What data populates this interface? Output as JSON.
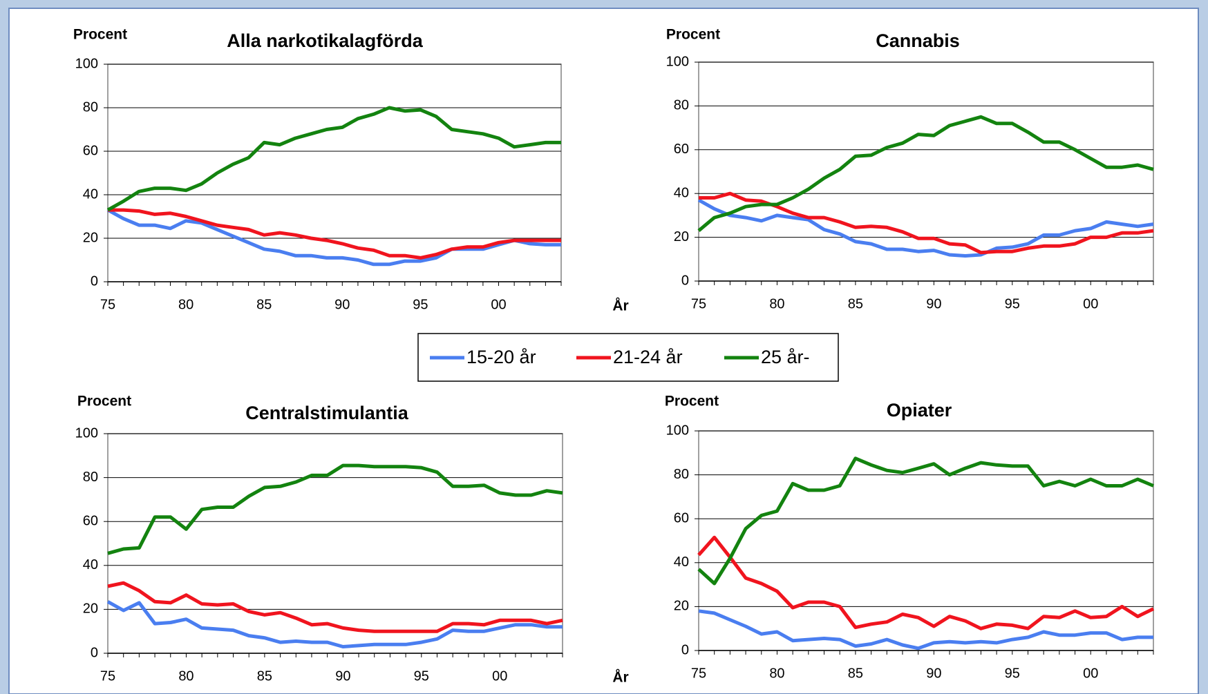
{
  "chart_data": [
    {
      "type": "line",
      "title": "Alla narkotikalagförda",
      "ylabel": "Procent",
      "xlabel": "År",
      "categories": [
        "75",
        null,
        null,
        null,
        null,
        "80",
        null,
        null,
        null,
        null,
        "85",
        null,
        null,
        null,
        null,
        "90",
        null,
        null,
        null,
        null,
        "95",
        null,
        null,
        null,
        null,
        "00",
        null,
        null,
        null,
        null
      ],
      "ylim": [
        0,
        100
      ],
      "yticks": [
        0,
        20,
        40,
        60,
        80,
        100
      ],
      "grid": true,
      "series": [
        {
          "name": "15-20 år",
          "color": "#4a7ef0",
          "values": [
            33,
            29,
            26,
            26,
            24.5,
            28,
            27,
            24,
            21,
            18,
            15,
            14,
            12,
            12,
            11,
            11,
            10,
            8,
            8,
            9.5,
            9.5,
            11,
            15,
            15,
            15,
            17,
            19,
            17.5,
            17,
            17
          ]
        },
        {
          "name": "21-24 år",
          "color": "#f0141e",
          "values": [
            33,
            33,
            32.5,
            31,
            31.5,
            30,
            28,
            26,
            25,
            24,
            21.5,
            22.5,
            21.5,
            20,
            19,
            17.5,
            15.5,
            14.5,
            12,
            12,
            11,
            12.5,
            15,
            16,
            16,
            18,
            19,
            19,
            19,
            19
          ]
        },
        {
          "name": "25 år-",
          "color": "#13830f",
          "values": [
            33,
            37,
            41.5,
            43,
            43,
            42,
            45,
            50,
            54,
            57,
            64,
            63,
            66,
            68,
            70,
            71,
            75,
            77,
            80,
            78.5,
            79,
            76,
            70,
            69,
            68,
            66,
            62,
            63,
            64,
            64
          ]
        }
      ]
    },
    {
      "type": "line",
      "title": "Cannabis",
      "ylabel": "Procent",
      "categories": [
        "75",
        null,
        null,
        null,
        null,
        "80",
        null,
        null,
        null,
        null,
        "85",
        null,
        null,
        null,
        null,
        "90",
        null,
        null,
        null,
        null,
        "95",
        null,
        null,
        null,
        null,
        "00",
        null,
        null,
        null,
        null
      ],
      "ylim": [
        0,
        100
      ],
      "yticks": [
        0,
        20,
        40,
        60,
        80,
        100
      ],
      "grid": true,
      "series": [
        {
          "values": [
            37,
            33,
            30,
            29,
            27.5,
            30,
            29,
            28,
            23.5,
            21.5,
            18,
            17,
            14.5,
            14.5,
            13.5,
            14,
            12,
            11.5,
            12,
            15,
            15.5,
            17,
            21,
            21,
            23,
            24,
            27,
            26,
            25,
            26
          ]
        },
        {
          "values": [
            38,
            38,
            40,
            37,
            36.5,
            34,
            31,
            29,
            29,
            27,
            24.5,
            25,
            24.5,
            22.5,
            19.5,
            19.5,
            17,
            16.5,
            13,
            13.5,
            13.5,
            15,
            16,
            16,
            17,
            20,
            20,
            22,
            22,
            23
          ]
        },
        {
          "values": [
            23,
            29,
            31,
            34,
            35,
            35,
            38,
            42,
            47,
            51,
            57,
            57.5,
            61,
            63,
            67,
            66.5,
            71,
            73,
            75,
            72,
            72,
            68,
            63.5,
            63.5,
            60,
            56,
            52,
            52,
            53,
            51
          ]
        }
      ]
    },
    {
      "type": "line",
      "title": "Centralstimulantia",
      "ylabel": "Procent",
      "xlabel": "År",
      "categories": [
        "75",
        null,
        null,
        null,
        null,
        "80",
        null,
        null,
        null,
        null,
        "85",
        null,
        null,
        null,
        null,
        "90",
        null,
        null,
        null,
        null,
        "95",
        null,
        null,
        null,
        null,
        "00",
        null,
        null,
        null,
        null
      ],
      "ylim": [
        0,
        100
      ],
      "yticks": [
        0,
        20,
        40,
        60,
        80,
        100
      ],
      "grid": true,
      "series": [
        {
          "values": [
            23.5,
            19.5,
            23,
            13.5,
            14,
            15.5,
            11.5,
            11,
            10.5,
            8,
            7,
            5,
            5.5,
            5,
            5,
            3,
            3.5,
            4,
            4,
            4,
            5,
            6.5,
            10.5,
            10,
            10,
            11.5,
            13,
            13,
            12,
            12
          ]
        },
        {
          "values": [
            30.5,
            32,
            28.5,
            23.5,
            23,
            26.5,
            22.5,
            22,
            22.5,
            19,
            17.5,
            18.5,
            16,
            13,
            13.5,
            11.5,
            10.5,
            10,
            10,
            10,
            10,
            10,
            13.5,
            13.5,
            13,
            15,
            15,
            15,
            13.5,
            15
          ]
        },
        {
          "values": [
            45.5,
            47.5,
            48,
            62,
            62,
            56.5,
            65.5,
            66.5,
            66.5,
            71.5,
            75.5,
            76,
            78,
            81,
            81,
            85.5,
            85.5,
            85,
            85,
            85,
            84.5,
            82.5,
            76,
            76,
            76.5,
            73,
            72,
            72,
            74,
            73
          ]
        }
      ]
    },
    {
      "type": "line",
      "title": "Opiater",
      "ylabel": "Procent",
      "categories": [
        "75",
        null,
        null,
        null,
        null,
        "80",
        null,
        null,
        null,
        null,
        "85",
        null,
        null,
        null,
        null,
        "90",
        null,
        null,
        null,
        null,
        "95",
        null,
        null,
        null,
        null,
        "00",
        null,
        null,
        null,
        null
      ],
      "ylim": [
        0,
        100
      ],
      "yticks": [
        0,
        20,
        40,
        60,
        80,
        100
      ],
      "grid": true,
      "series": [
        {
          "values": [
            18,
            17,
            14,
            11,
            7.5,
            8.5,
            4.5,
            5,
            5.5,
            5,
            2,
            3,
            5,
            2.5,
            1,
            3.5,
            4,
            3.5,
            4,
            3.5,
            5,
            6,
            8.5,
            7,
            7,
            8,
            8,
            5,
            6,
            6
          ]
        },
        {
          "values": [
            43.5,
            51.5,
            42.5,
            33,
            30.5,
            27,
            19.5,
            22,
            22,
            20,
            10.5,
            12,
            13,
            16.5,
            15,
            11,
            15.5,
            13.5,
            10,
            12,
            11.5,
            10,
            15.5,
            15,
            18,
            15,
            15.5,
            20,
            15.5,
            19
          ]
        },
        {
          "values": [
            37,
            30.5,
            42,
            55.5,
            61.5,
            63.5,
            76,
            73,
            73,
            75,
            87.5,
            84.5,
            82,
            81,
            83,
            85,
            80,
            83,
            85.5,
            84.5,
            84,
            84,
            75,
            77,
            75,
            78,
            75,
            75,
            78,
            75
          ]
        }
      ]
    }
  ]
}
